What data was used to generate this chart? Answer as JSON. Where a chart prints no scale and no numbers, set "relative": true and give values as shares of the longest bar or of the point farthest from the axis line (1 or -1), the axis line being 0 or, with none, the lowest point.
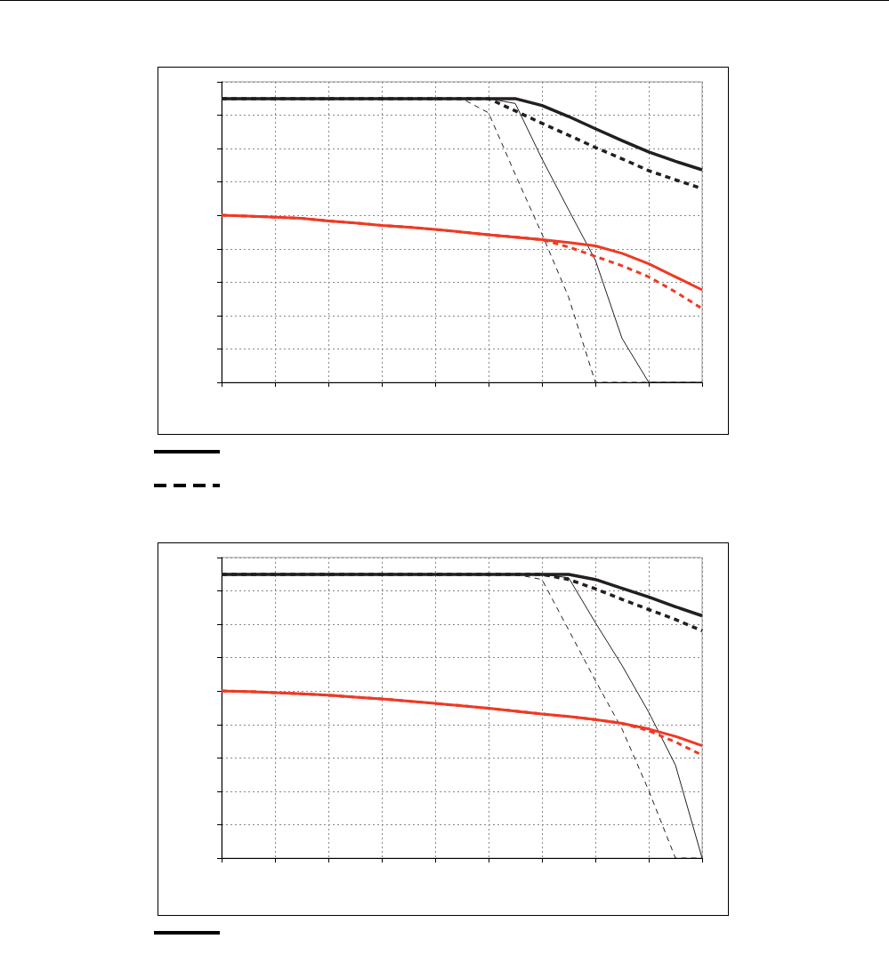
{
  "chart_data": [
    {
      "type": "line",
      "relative": true,
      "grid": true,
      "marker": "none",
      "categories": [
        null,
        null,
        null,
        null,
        null,
        null,
        null,
        null,
        null,
        null,
        null,
        null,
        null,
        null,
        null,
        null,
        null,
        null,
        null
      ],
      "series": [
        {
          "color": "#231f20",
          "line_style": "solid",
          "values": [
            1,
            1,
            1,
            1,
            1,
            1,
            1,
            1,
            1,
            1,
            1,
            1,
            0.976,
            0.937,
            0.894,
            0.852,
            0.812,
            0.779,
            0.749
          ]
        },
        {
          "color": "#231f20",
          "line_style": "dashed",
          "values": [
            1,
            1,
            1,
            1,
            1,
            1,
            1,
            1,
            1,
            1,
            1,
            0.957,
            0.913,
            0.871,
            0.828,
            0.788,
            0.746,
            0.714,
            0.683
          ]
        },
        {
          "color": "#231f20",
          "line_style": "solid",
          "values": [
            1,
            1,
            1,
            1,
            1,
            1,
            1,
            1,
            1,
            1,
            1,
            0.983,
            0.788,
            0.608,
            0.431,
            0.155,
            0,
            0,
            0
          ]
        },
        {
          "color": "#231f20",
          "line_style": "dashed",
          "values": [
            1,
            1,
            1,
            1,
            1,
            1,
            1,
            1,
            1,
            1,
            0.95,
            0.733,
            0.523,
            0.3,
            0,
            0,
            0,
            0,
            0
          ]
        },
        {
          "color": "#ee3a24",
          "line_style": "solid",
          "values": [
            0.589,
            0.586,
            0.582,
            0.578,
            0.569,
            0.562,
            0.553,
            0.547,
            0.539,
            0.53,
            0.52,
            0.512,
            0.503,
            0.493,
            0.481,
            0.455,
            0.418,
            0.372,
            0.326
          ]
        },
        {
          "color": "#ee3a24",
          "line_style": "dashed",
          "values": [
            0.589,
            0.586,
            0.582,
            0.578,
            0.569,
            0.562,
            0.553,
            0.547,
            0.539,
            0.53,
            0.52,
            0.512,
            0.503,
            0.477,
            0.444,
            0.411,
            0.372,
            0.319,
            0.26
          ]
        }
      ]
    },
    {
      "type": "line",
      "relative": true,
      "grid": true,
      "marker": "none",
      "categories": [
        null,
        null,
        null,
        null,
        null,
        null,
        null,
        null,
        null,
        null,
        null,
        null,
        null,
        null,
        null,
        null,
        null,
        null,
        null
      ],
      "series": [
        {
          "color": "#231f20",
          "line_style": "solid",
          "values": [
            1,
            1,
            1,
            1,
            1,
            1,
            1,
            1,
            1,
            1,
            1,
            1,
            1,
            1,
            0.982,
            0.951,
            0.92,
            0.886,
            0.854
          ]
        },
        {
          "color": "#231f20",
          "line_style": "dashed",
          "values": [
            1,
            1,
            1,
            1,
            1,
            1,
            1,
            1,
            1,
            1,
            1,
            1,
            1,
            0.982,
            0.949,
            0.912,
            0.876,
            0.841,
            0.801
          ]
        },
        {
          "color": "#231f20",
          "line_style": "solid",
          "values": [
            1,
            1,
            1,
            1,
            1,
            1,
            1,
            1,
            1,
            1,
            1,
            1,
            1,
            0.988,
            0.83,
            0.679,
            0.514,
            0.328,
            0
          ]
        },
        {
          "color": "#231f20",
          "line_style": "dashed",
          "values": [
            1,
            1,
            1,
            1,
            1,
            1,
            1,
            1,
            1,
            1,
            1,
            1,
            0.982,
            0.804,
            0.626,
            0.455,
            0.238,
            0,
            0
          ]
        },
        {
          "color": "#ee3a24",
          "line_style": "solid",
          "values": [
            0.589,
            0.587,
            0.583,
            0.579,
            0.574,
            0.567,
            0.561,
            0.553,
            0.545,
            0.537,
            0.528,
            0.518,
            0.508,
            0.499,
            0.488,
            0.475,
            0.455,
            0.429,
            0.396
          ]
        },
        {
          "color": "#ee3a24",
          "line_style": "dashed",
          "values": [
            0.589,
            0.587,
            0.583,
            0.579,
            0.574,
            0.567,
            0.561,
            0.553,
            0.545,
            0.537,
            0.528,
            0.518,
            0.508,
            0.499,
            0.488,
            0.475,
            0.449,
            0.409,
            0.363
          ]
        }
      ]
    }
  ]
}
